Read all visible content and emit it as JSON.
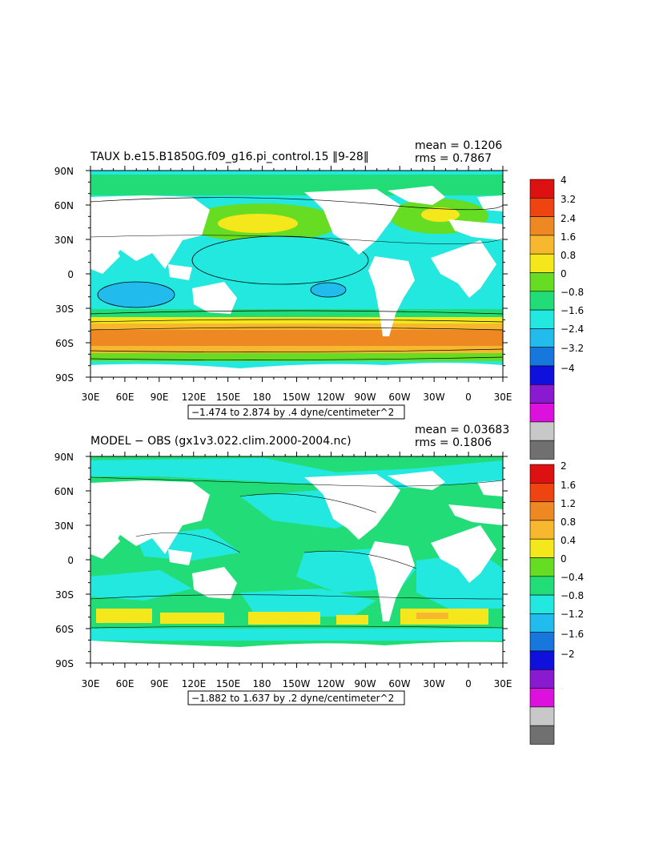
{
  "panels": [
    {
      "title": "TAUX b.e15.B1850G.f09_g16.pi_control.15 ‖9-28‖",
      "mean": "mean = 0.1206",
      "rms": "rms = 0.7867",
      "range_box": "−1.474 to 2.874 by .4 dyne/centimeter^2",
      "colorbar_labels": [
        "4",
        "3.2",
        "2.4",
        "1.6",
        "0.8",
        "0",
        "−0.8",
        "−1.6",
        "−2.4",
        "−3.2",
        "−4"
      ]
    },
    {
      "title": "MODEL − OBS (gx1v3.022.clim.2000-2004.nc)",
      "mean": "mean = 0.03683",
      "rms": "rms = 0.1806",
      "range_box": "−1.882 to 1.637 by .2 dyne/centimeter^2",
      "colorbar_labels": [
        "2",
        "1.6",
        "1.2",
        "0.8",
        "0.4",
        "0",
        "−0.4",
        "−0.8",
        "−1.2",
        "−1.6",
        "−2"
      ]
    }
  ],
  "axes": {
    "lat_labels": [
      "90N",
      "60N",
      "30N",
      "0",
      "30S",
      "60S",
      "90S"
    ],
    "lon_labels": [
      "30E",
      "60E",
      "90E",
      "120E",
      "150E",
      "180",
      "150W",
      "120W",
      "90W",
      "60W",
      "30W",
      "0",
      "30E"
    ]
  },
  "colorbar_colors": [
    "#dd1111",
    "#ee4411",
    "#ee8822",
    "#f7b830",
    "#f4e81c",
    "#66dd22",
    "#22dd77",
    "#22e8e0",
    "#22bbee",
    "#1877dd",
    "#1010dd",
    "#8a1ad0",
    "#dd11dd",
    "#c8c8c8",
    "#707070"
  ],
  "map_colors": {
    "land": "#ffffff",
    "ocean_base_1": "#22e8e0",
    "ocean_base_2": "#22e8e0"
  }
}
